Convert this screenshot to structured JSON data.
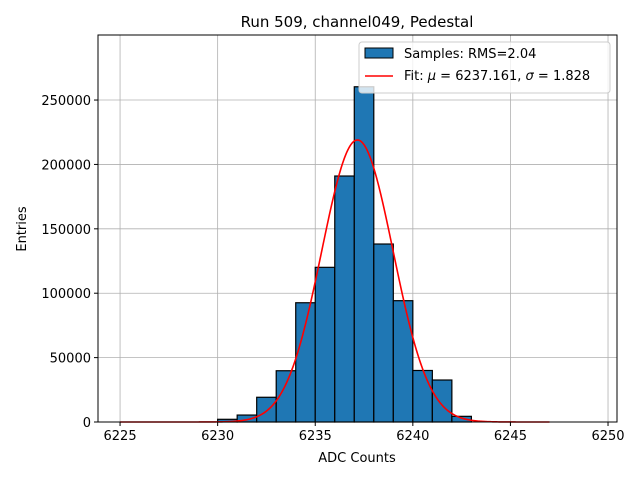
{
  "chart_data": {
    "type": "bar",
    "title": "Run 509, channel049, Pedestal",
    "xlabel": "ADC Counts",
    "ylabel": "Entries",
    "xlim": [
      6223.87,
      6250.46
    ],
    "ylim": [
      0,
      300500
    ],
    "grid": true,
    "legend_placement": "top-right",
    "xticks": [
      6225,
      6230,
      6235,
      6240,
      6245,
      6250
    ],
    "yticks": [
      0,
      50000,
      100000,
      150000,
      200000,
      250000
    ],
    "histogram": {
      "name": "Samples: RMS=2.04",
      "color": "#1f77b4",
      "bin_width": 1,
      "bin_edges_start": [
        6230,
        6231,
        6232,
        6233,
        6234,
        6235,
        6236,
        6237,
        6238,
        6239,
        6240,
        6241,
        6242
      ],
      "values": [
        2100,
        5400,
        19200,
        39800,
        92600,
        120100,
        191000,
        260300,
        138200,
        94200,
        40000,
        32600,
        4400
      ]
    },
    "fit": {
      "name_prefix": "Fit: ",
      "mu_label": "μ",
      "sigma_label": "σ",
      "mu": 6237.161,
      "sigma": 1.828,
      "mu_text": "6237.161",
      "sigma_text": "1.828",
      "amplitude": 219000,
      "x_range": [
        6225,
        6247
      ],
      "color": "#ff0000"
    }
  }
}
